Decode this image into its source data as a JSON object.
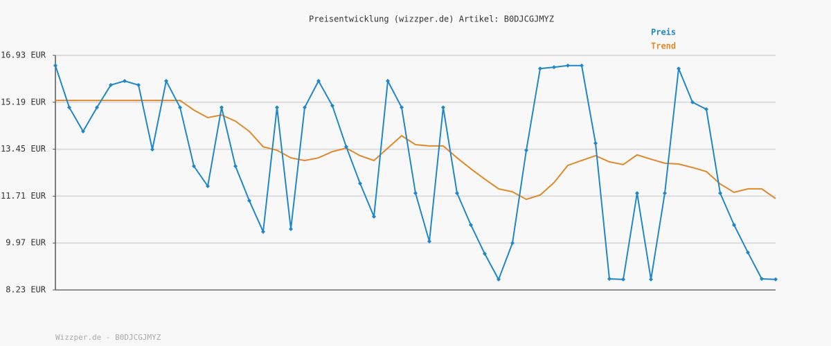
{
  "chart_data": {
    "type": "line",
    "title": "Preisentwicklung (wizzper.de) Artikel: B0DJCGJMYZ",
    "footer": "Wizzper.de - B0DJCGJMYZ",
    "categories": [
      null,
      null,
      null,
      null,
      null,
      null,
      null,
      null,
      null,
      null,
      null,
      null,
      null,
      null,
      null,
      null,
      null,
      null,
      null,
      null,
      null,
      null,
      null,
      null,
      null,
      null,
      null,
      null,
      null,
      null,
      null,
      null,
      null,
      null,
      null,
      null,
      null,
      null,
      null,
      null,
      null,
      null,
      null,
      null,
      null,
      null,
      null,
      null,
      null,
      null,
      null,
      null,
      null
    ],
    "series": [
      {
        "name": "Preis",
        "color": "#1f87c8",
        "markers": true,
        "values": [
          16.55,
          15.0,
          14.11,
          15.0,
          15.83,
          15.98,
          15.83,
          13.44,
          15.98,
          15.0,
          12.82,
          12.08,
          15.0,
          12.82,
          11.54,
          10.39,
          15.0,
          10.49,
          15.0,
          15.98,
          15.06,
          13.54,
          12.18,
          10.95,
          15.98,
          15.0,
          11.82,
          10.03,
          15.0,
          11.82,
          10.64,
          9.57,
          8.62,
          9.97,
          13.41,
          16.44,
          16.49,
          16.55,
          16.55,
          13.67,
          8.64,
          8.62,
          11.82,
          8.62,
          11.82,
          16.44,
          15.19,
          14.93,
          11.82,
          10.64,
          9.62,
          8.64,
          8.62
        ]
      },
      {
        "name": "Trend",
        "color": "#e0892a",
        "markers": false,
        "values": [
          15.26,
          15.26,
          15.26,
          15.26,
          15.26,
          15.26,
          15.26,
          15.26,
          15.26,
          15.26,
          14.9,
          14.62,
          14.72,
          14.49,
          14.11,
          13.54,
          13.41,
          13.13,
          13.03,
          13.13,
          13.36,
          13.49,
          13.21,
          13.03,
          13.49,
          13.95,
          13.62,
          13.57,
          13.57,
          13.13,
          12.72,
          12.34,
          11.98,
          11.87,
          11.59,
          11.75,
          12.21,
          12.85,
          13.03,
          13.21,
          12.98,
          12.88,
          13.24,
          13.08,
          12.93,
          12.9,
          12.77,
          12.62,
          12.16,
          11.85,
          11.98,
          11.98,
          11.62
        ]
      }
    ],
    "ylim": [
      8.23,
      16.93
    ],
    "yticks": [
      {
        "value": 8.23,
        "label": "8.23 EUR"
      },
      {
        "value": 9.97,
        "label": "9.97 EUR"
      },
      {
        "value": 11.71,
        "label": "11.71 EUR"
      },
      {
        "value": 13.45,
        "label": "13.45 EUR"
      },
      {
        "value": 15.19,
        "label": "15.19 EUR"
      },
      {
        "value": 16.93,
        "label": "16.93 EUR"
      }
    ],
    "grid": true
  }
}
